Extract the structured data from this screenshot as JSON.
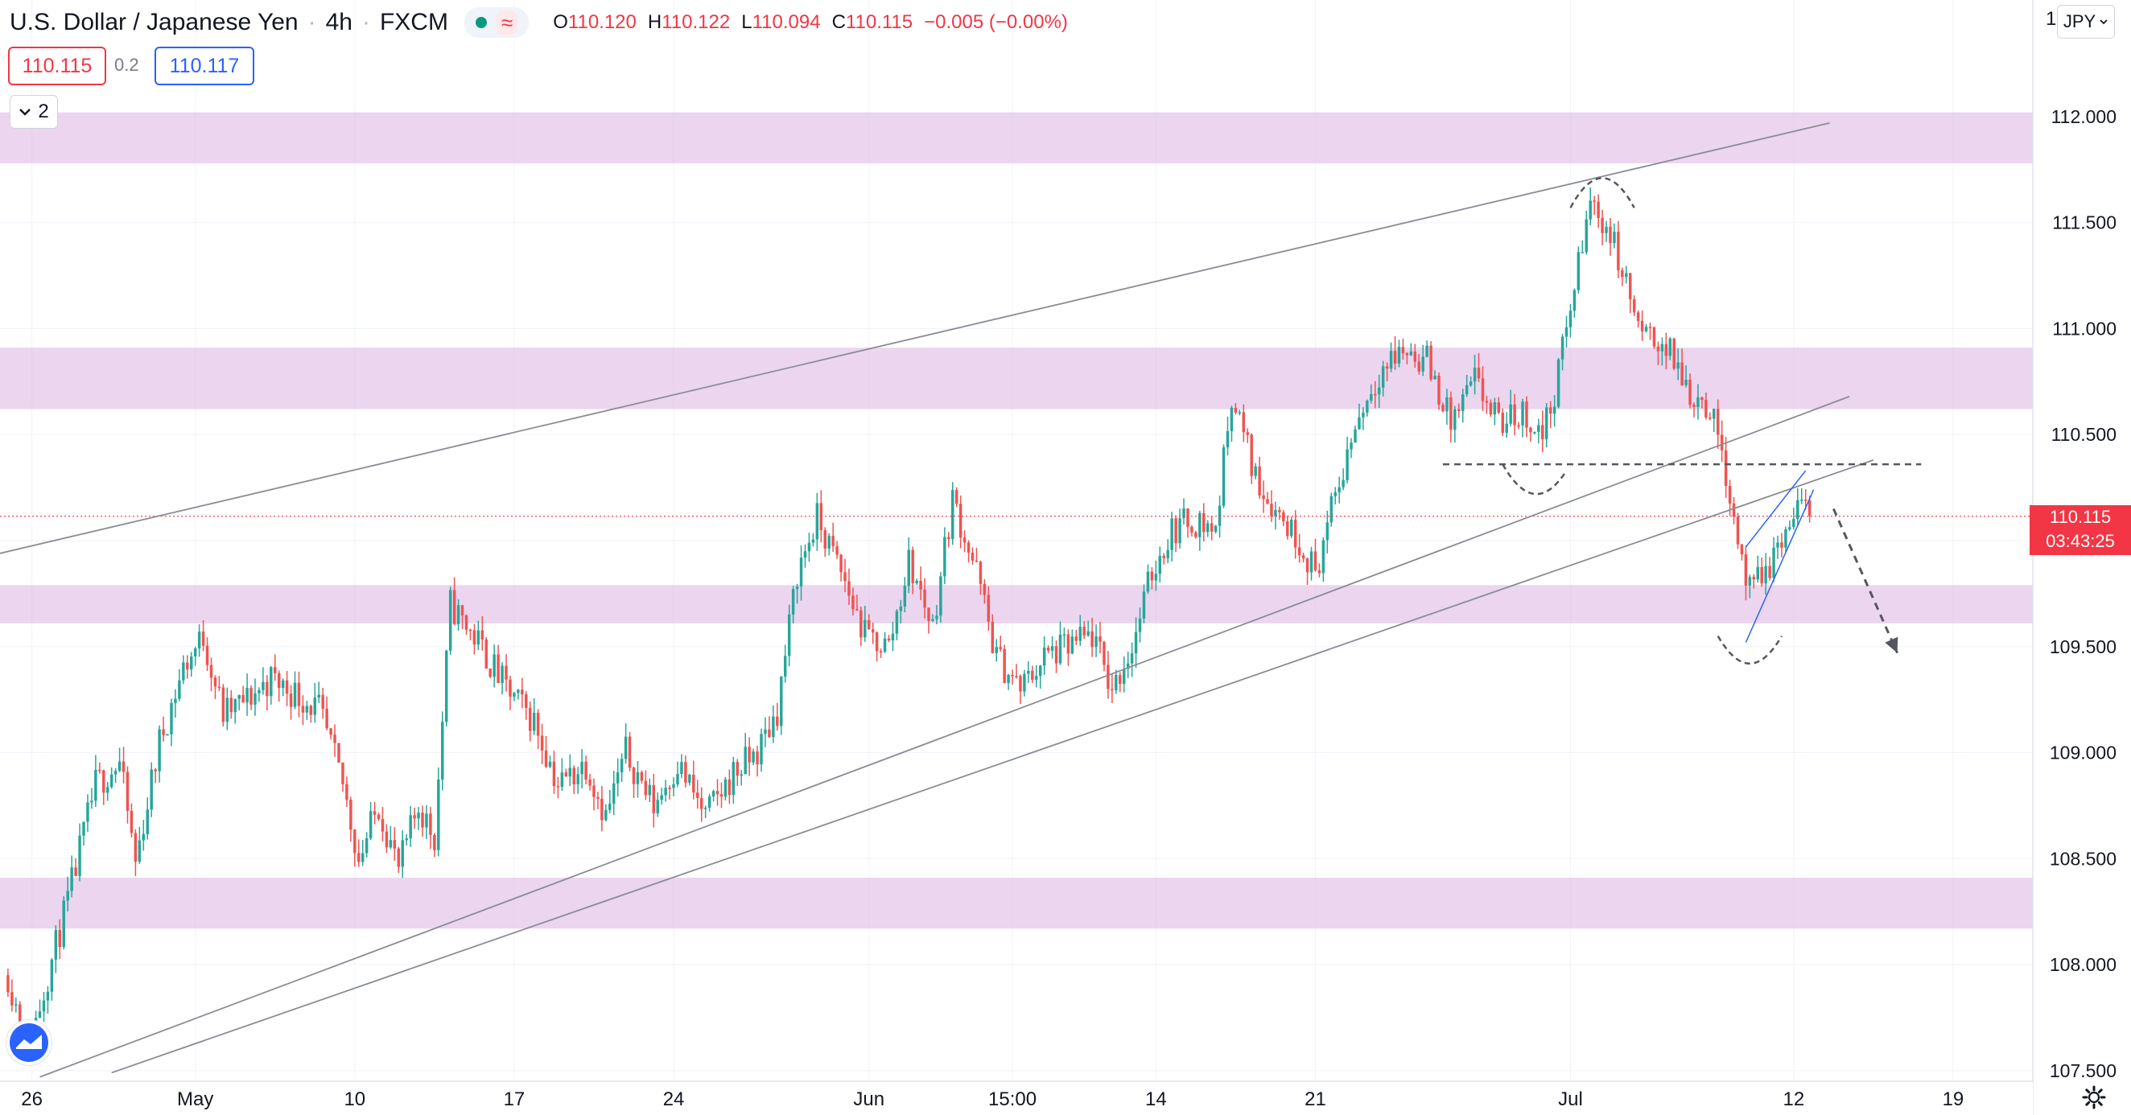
{
  "header": {
    "symbol": "U.S. Dollar / Japanese Yen",
    "interval": "4h",
    "exchange": "FXCM",
    "ohlc": {
      "o_label": "O",
      "o": "110.120",
      "h_label": "H",
      "h": "110.122",
      "l_label": "L",
      "l": "110.094",
      "c_label": "C",
      "c": "110.115",
      "change": "−0.005 (−0.00%)"
    }
  },
  "quote": {
    "bid": "110.115",
    "spread": "0.2",
    "ask": "110.117"
  },
  "indicators_toggle": {
    "count": "2"
  },
  "currency_button": {
    "label": "JPY"
  },
  "axis_top_label": "1",
  "last_price": {
    "value": "110.115",
    "countdown": "03:43:25"
  },
  "colors": {
    "up": "#26a69a",
    "down": "#ef5350",
    "zone": "#e1bee7",
    "trendline": "#8a8d95",
    "dashed": "#55575f",
    "wedge": "#2962ff",
    "last_line": "#f23645"
  },
  "chart_data": {
    "type": "candlestick",
    "title": "",
    "xlabel": "",
    "ylabel": "",
    "ylim": [
      107.45,
      112.55
    ],
    "y_ticks": [
      107.5,
      108.0,
      108.5,
      109.0,
      109.5,
      110.0,
      110.5,
      111.0,
      111.5,
      112.0
    ],
    "y_tick_labels": [
      "107.500",
      "108.000",
      "108.500",
      "109.000",
      "109.500",
      "",
      "110.500",
      "111.000",
      "111.500",
      "112.000"
    ],
    "x_tick_labels": [
      {
        "label": "26",
        "bar": 6
      },
      {
        "label": "May",
        "bar": 47
      },
      {
        "label": "10",
        "bar": 87
      },
      {
        "label": "17",
        "bar": 127
      },
      {
        "label": "24",
        "bar": 167
      },
      {
        "label": "Jun",
        "bar": 216
      },
      {
        "label": "15:00",
        "bar": 252
      },
      {
        "label": "14",
        "bar": 288
      },
      {
        "label": "21",
        "bar": 328
      },
      {
        "label": "Jul",
        "bar": 392
      },
      {
        "label": "12",
        "bar": 448
      },
      {
        "label": "19",
        "bar": 488
      }
    ],
    "x_range_bars": [
      -2,
      508
    ],
    "zones": [
      [
        111.78,
        112.02
      ],
      [
        110.62,
        110.91
      ],
      [
        109.61,
        109.79
      ],
      [
        108.17,
        108.41
      ]
    ],
    "current_price": 110.115,
    "trendlines": [
      {
        "from": [
          -2,
          109.94
        ],
        "to": [
          457,
          111.97
        ]
      },
      {
        "from": [
          8,
          107.47
        ],
        "to": [
          462,
          110.68
        ]
      },
      {
        "from": [
          26,
          107.49
        ],
        "to": [
          468,
          110.38
        ]
      }
    ],
    "dashed_level": {
      "from": [
        360,
        110.36
      ],
      "to": [
        480,
        110.36
      ]
    },
    "wedge": [
      {
        "from": [
          436,
          109.52
        ],
        "to": [
          453,
          110.24
        ]
      },
      {
        "from": [
          436,
          109.97
        ],
        "to": [
          451,
          110.33
        ]
      }
    ],
    "arcs": [
      {
        "from": [
          392,
          111.57
        ],
        "to": [
          408,
          111.57
        ],
        "peak": 111.71
      },
      {
        "from": [
          375,
          110.36
        ],
        "to": [
          391,
          110.33
        ],
        "peak": 110.22
      },
      {
        "from": [
          429,
          109.55
        ],
        "to": [
          445,
          109.55
        ],
        "peak": 109.42
      }
    ],
    "projection_arrow": {
      "from": [
        458,
        110.15
      ],
      "to": [
        474,
        109.47
      ]
    },
    "anchors": [
      [
        0,
        107.95
      ],
      [
        5,
        107.6
      ],
      [
        10,
        107.95
      ],
      [
        15,
        108.3
      ],
      [
        22,
        108.85
      ],
      [
        28,
        108.95
      ],
      [
        32,
        108.48
      ],
      [
        38,
        109.05
      ],
      [
        44,
        109.4
      ],
      [
        49,
        109.55
      ],
      [
        54,
        109.18
      ],
      [
        60,
        109.25
      ],
      [
        66,
        109.35
      ],
      [
        72,
        109.28
      ],
      [
        78,
        109.2
      ],
      [
        84,
        108.85
      ],
      [
        88,
        108.5
      ],
      [
        93,
        108.75
      ],
      [
        98,
        108.45
      ],
      [
        103,
        108.75
      ],
      [
        107,
        108.6
      ],
      [
        111,
        109.7
      ],
      [
        118,
        109.52
      ],
      [
        125,
        109.3
      ],
      [
        132,
        109.15
      ],
      [
        138,
        108.85
      ],
      [
        145,
        108.95
      ],
      [
        150,
        108.7
      ],
      [
        155,
        109.0
      ],
      [
        162,
        108.75
      ],
      [
        168,
        108.95
      ],
      [
        175,
        108.7
      ],
      [
        182,
        108.9
      ],
      [
        188,
        109.0
      ],
      [
        193,
        109.2
      ],
      [
        198,
        109.85
      ],
      [
        203,
        110.1
      ],
      [
        209,
        109.85
      ],
      [
        215,
        109.55
      ],
      [
        221,
        109.5
      ],
      [
        226,
        109.9
      ],
      [
        232,
        109.6
      ],
      [
        237,
        110.2
      ],
      [
        243,
        109.85
      ],
      [
        248,
        109.45
      ],
      [
        254,
        109.3
      ],
      [
        260,
        109.45
      ],
      [
        266,
        109.5
      ],
      [
        272,
        109.55
      ],
      [
        277,
        109.3
      ],
      [
        282,
        109.5
      ],
      [
        287,
        109.85
      ],
      [
        292,
        110.05
      ],
      [
        297,
        110.1
      ],
      [
        303,
        110.05
      ],
      [
        307,
        110.7
      ],
      [
        313,
        110.3
      ],
      [
        318,
        110.15
      ],
      [
        324,
        110.0
      ],
      [
        328,
        109.85
      ],
      [
        333,
        110.2
      ],
      [
        338,
        110.55
      ],
      [
        344,
        110.8
      ],
      [
        350,
        110.9
      ],
      [
        356,
        110.85
      ],
      [
        362,
        110.55
      ],
      [
        368,
        110.75
      ],
      [
        374,
        110.55
      ],
      [
        380,
        110.6
      ],
      [
        385,
        110.5
      ],
      [
        388,
        110.7
      ],
      [
        392,
        111.1
      ],
      [
        397,
        111.6
      ],
      [
        402,
        111.45
      ],
      [
        406,
        111.2
      ],
      [
        410,
        110.95
      ],
      [
        414,
        110.95
      ],
      [
        418,
        110.85
      ],
      [
        422,
        110.7
      ],
      [
        426,
        110.65
      ],
      [
        430,
        110.45
      ],
      [
        434,
        110.0
      ],
      [
        437,
        109.75
      ],
      [
        441,
        109.85
      ],
      [
        445,
        110.0
      ],
      [
        449,
        110.15
      ],
      [
        452,
        110.12
      ]
    ]
  }
}
